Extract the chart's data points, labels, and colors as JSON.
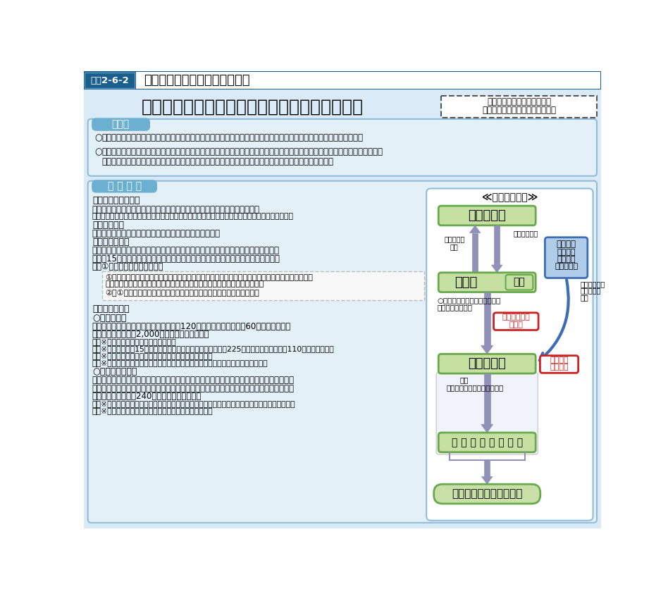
{
  "title_tag": "図表2-6-2",
  "title_text": "事業復興型雇用確保事業の概要",
  "main_title": "事　業　復　興　型　雇　用　確　保　事　業",
  "budget_line1": "令和４年度予算額　制度要求",
  "budget_line2": "（令和３年度予算額　制度要求）",
  "section1_title": "趣　旨",
  "section1_bullet1": "被災地では、特に沿岸地域を中心に人手不足が深刻化しており、本格的な雇用復興にはなお時間を要する状況にある。",
  "section1_bullet2_1": "こうした被災地特有の現状に対応するため、地域の産業の中核となる中小企業が事業を再開等するに当たって、被災求職者等を",
  "section1_bullet2_2": "雇用する場合に、産業政策と一体となって雇用面から支援を行うことで、復興の推進を図るものである。",
  "section2_title": "事 業 概 要",
  "scheme_title": "≪事業スキーム≫",
  "box_mhlw": "厚生労働省",
  "box_pref": "被災県",
  "box_fund": "基金",
  "box_company": "民間企業等",
  "box_workers": "被 災 三 県 求 職 者 等",
  "box_industry_1": "産業政策",
  "box_industry_2": "・経産省",
  "box_industry_3": "・農水省",
  "box_industry_4": "・自治体等",
  "box_subsidy_1": "本事業による",
  "box_subsidy_2": "助成金",
  "box_group_1": "グループ",
  "box_group_2": "補助金等",
  "box_employee": "従　業　員　の　確　保",
  "arrow_left_text": "事業計画の\n提出",
  "arrow_right_text": "交付金の交付",
  "arrow_ojt_1": "○ＪＴ費用や雇用管理改善等の",
  "arrow_ojt_2": "雇入経費等を助成",
  "arrow_employ": "雇用",
  "arrow_match": "（求人・求職のマッチング）",
  "arrow_facility_1": "施設整備等に",
  "arrow_facility_2": "係る経費を",
  "arrow_facility_3": "補助",
  "bg_color": "#daeaf7",
  "header_bg": "#1b5e8c",
  "tag_bg": "#1b5e8c",
  "title_area_bg": "#ffffff",
  "section_title_bg": "#6bafd1",
  "green_box_bg": "#c5e0a0",
  "green_box_border": "#6aa84f",
  "scheme_box_bg": "#ffffff",
  "scheme_box_border": "#90bcd8",
  "red_box_border": "#cc2222",
  "red_box_text": "#cc2222",
  "blue_arrow_color": "#3d6eb5",
  "purple_arrow_color": "#9090b8",
  "industry_box_bg": "#b0cce8",
  "industry_box_border": "#3d6eb5",
  "employee_box_bg": "#c8dfa8",
  "employee_box_border": "#6aa84f",
  "inner_box_bg": "#f8f8f8",
  "inner_box_border": "#bbbbbb",
  "inner_box_dash": "#aaaacc",
  "sec1_box_bg": "#e4f0f8",
  "sec1_box_border": "#90bcd8",
  "sec2_box_bg": "#e4f0f8",
  "sec2_box_border": "#90bcd8"
}
